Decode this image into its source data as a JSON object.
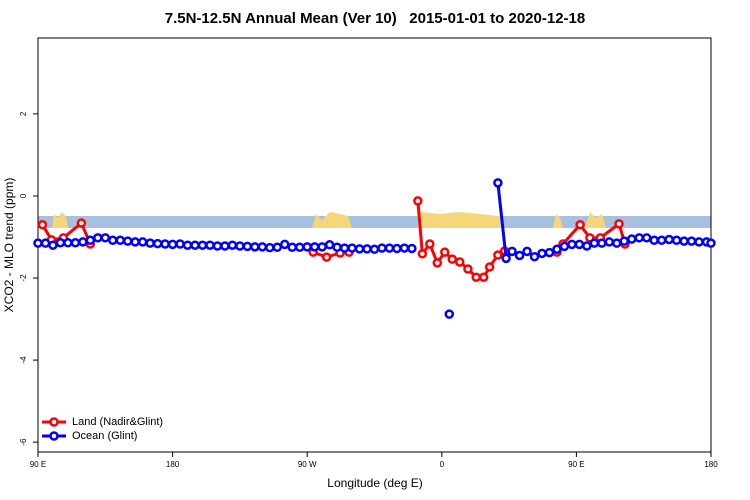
{
  "chart_data": {
    "type": "line",
    "title": "7.5N-12.5N Annual Mean (Ver 10)   2015-01-01 to 2020-12-18",
    "x_label": "Longitude (deg E)",
    "y_label": "XCO2 - MLO trend (ppm)",
    "xlim": [
      90,
      540
    ],
    "ylim": [
      -6.24,
      3.85
    ],
    "xticks": [
      {
        "value": 90,
        "label": "90 E"
      },
      180,
      {
        "value": 270,
        "label": "90 W"
      },
      {
        "value": 360,
        "label": "0"
      },
      {
        "value": 450,
        "label": "90 E"
      },
      {
        "value": 540,
        "label": "180"
      }
    ],
    "yticks": [
      -6,
      -4,
      -2,
      0,
      2
    ],
    "legend": "bottom-left",
    "series": [
      {
        "name": "Land (Nadir&Glint)",
        "color": "#ff0000",
        "x": [
          93,
          99,
          107,
          119,
          125,
          200,
          274,
          283,
          292,
          298,
          320,
          344,
          347,
          352,
          357,
          362,
          367,
          372,
          377.5,
          383,
          388,
          392,
          397.5,
          402,
          420,
          437,
          441,
          452.5,
          459,
          466,
          478.5,
          482.5
        ],
        "values": [
          -0.7,
          -1.07,
          -1.02,
          -0.66,
          -1.17,
          null,
          -1.37,
          -1.49,
          -1.39,
          -1.37,
          null,
          -0.12,
          -1.41,
          -1.17,
          -1.63,
          -1.37,
          -1.54,
          -1.61,
          -1.78,
          -1.98,
          -1.98,
          -1.73,
          -1.44,
          -1.34,
          null,
          -1.37,
          -1.17,
          -0.7,
          -1.02,
          -1.02,
          -0.68,
          -1.17
        ]
      },
      {
        "name": "Ocean (Glint)",
        "color": "#0000ff",
        "x": [
          90,
          95,
          100,
          105,
          110,
          115,
          120,
          125,
          130,
          135,
          140,
          145,
          150,
          155,
          160,
          165,
          170,
          175,
          180,
          185,
          190,
          195,
          200,
          205,
          210,
          215,
          220,
          225,
          230,
          235,
          240,
          245,
          250,
          255,
          260,
          265,
          270,
          275,
          280,
          285,
          290,
          295,
          300,
          305,
          310,
          315,
          320,
          325,
          330,
          335,
          340,
          345,
          365,
          370,
          397.5,
          403,
          407,
          412,
          417,
          422,
          427,
          432,
          437,
          442,
          447,
          452,
          457,
          462,
          467,
          472,
          477,
          482,
          487,
          492,
          497,
          502,
          507,
          512,
          517,
          522,
          527,
          532,
          537,
          540
        ],
        "values": [
          -1.15,
          -1.15,
          -1.2,
          -1.14,
          -1.14,
          -1.14,
          -1.12,
          -1.08,
          -1.02,
          -1.02,
          -1.08,
          -1.08,
          -1.1,
          -1.12,
          -1.12,
          -1.15,
          -1.16,
          -1.17,
          -1.18,
          -1.17,
          -1.2,
          -1.2,
          -1.2,
          -1.2,
          -1.22,
          -1.22,
          -1.2,
          -1.22,
          -1.23,
          -1.24,
          -1.24,
          -1.26,
          -1.25,
          -1.18,
          -1.25,
          -1.25,
          -1.24,
          -1.24,
          -1.24,
          -1.19,
          -1.25,
          -1.27,
          -1.27,
          -1.29,
          -1.29,
          -1.3,
          -1.27,
          -1.27,
          -1.28,
          -1.27,
          -1.28,
          null,
          -2.88,
          null,
          0.32,
          -1.52,
          -1.35,
          -1.45,
          -1.35,
          -1.48,
          -1.4,
          -1.38,
          -1.3,
          -1.23,
          -1.18,
          -1.18,
          -1.22,
          -1.15,
          -1.15,
          -1.12,
          -1.15,
          -1.1,
          -1.05,
          -1.02,
          -1.02,
          -1.08,
          -1.08,
          -1.06,
          -1.08,
          -1.1,
          -1.1,
          -1.12,
          -1.12,
          -1.15
        ]
      }
    ]
  }
}
